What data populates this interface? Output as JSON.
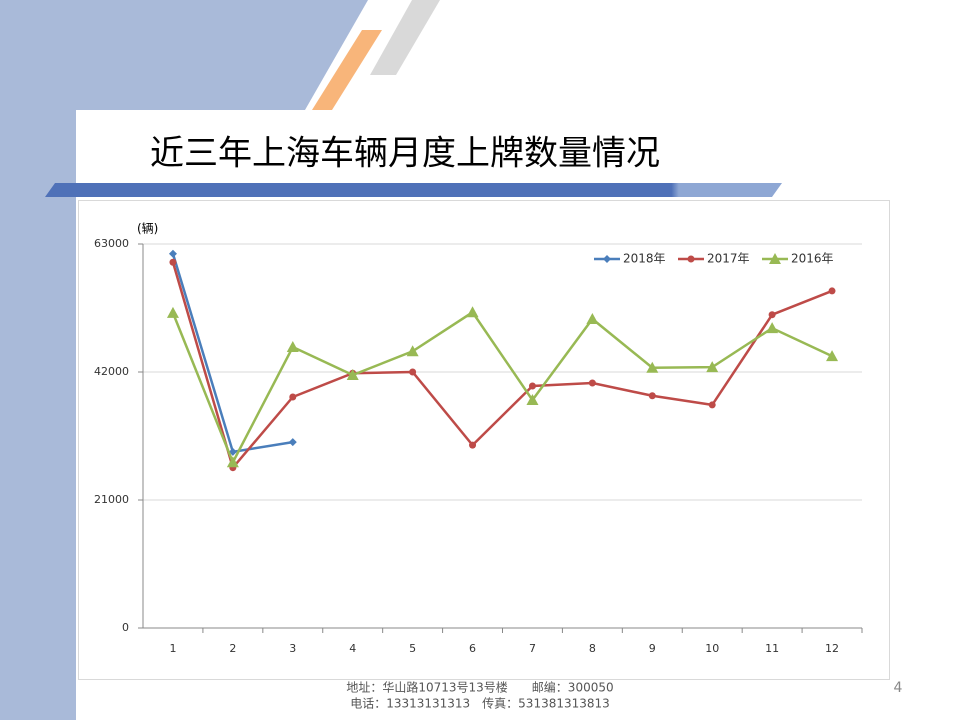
{
  "chart_data": {
    "type": "line",
    "title": "近三年上海车辆月度上牌数量情况",
    "y_label": "(辆)",
    "categories": [
      "1",
      "2",
      "3",
      "4",
      "5",
      "6",
      "7",
      "8",
      "9",
      "10",
      "11",
      "12"
    ],
    "series": [
      {
        "name": "2018年",
        "color": "#4a7ebb",
        "marker": "diamond",
        "values": [
          61400,
          28900,
          30500,
          null,
          null,
          null,
          null,
          null,
          null,
          null,
          null,
          null
        ]
      },
      {
        "name": "2017年",
        "color": "#be4b48",
        "marker": "circle",
        "values": [
          60000,
          26300,
          37900,
          41800,
          42000,
          30000,
          39700,
          40200,
          38100,
          36600,
          51400,
          55300
        ]
      },
      {
        "name": "2016年",
        "color": "#98b954",
        "marker": "triangle",
        "values": [
          51700,
          27200,
          46100,
          41500,
          45400,
          51800,
          37400,
          50700,
          42700,
          42800,
          49200,
          44600
        ]
      }
    ],
    "ylim": [
      0,
      63000
    ],
    "yticks": [
      0,
      21000,
      42000,
      63000
    ],
    "grid": true,
    "legend": "top-right"
  },
  "footer": {
    "address": "地址：华山路10713号13号楼　　邮编：300050",
    "phone": "电话：13313131313　传真：531381313813",
    "page_number": "4"
  }
}
